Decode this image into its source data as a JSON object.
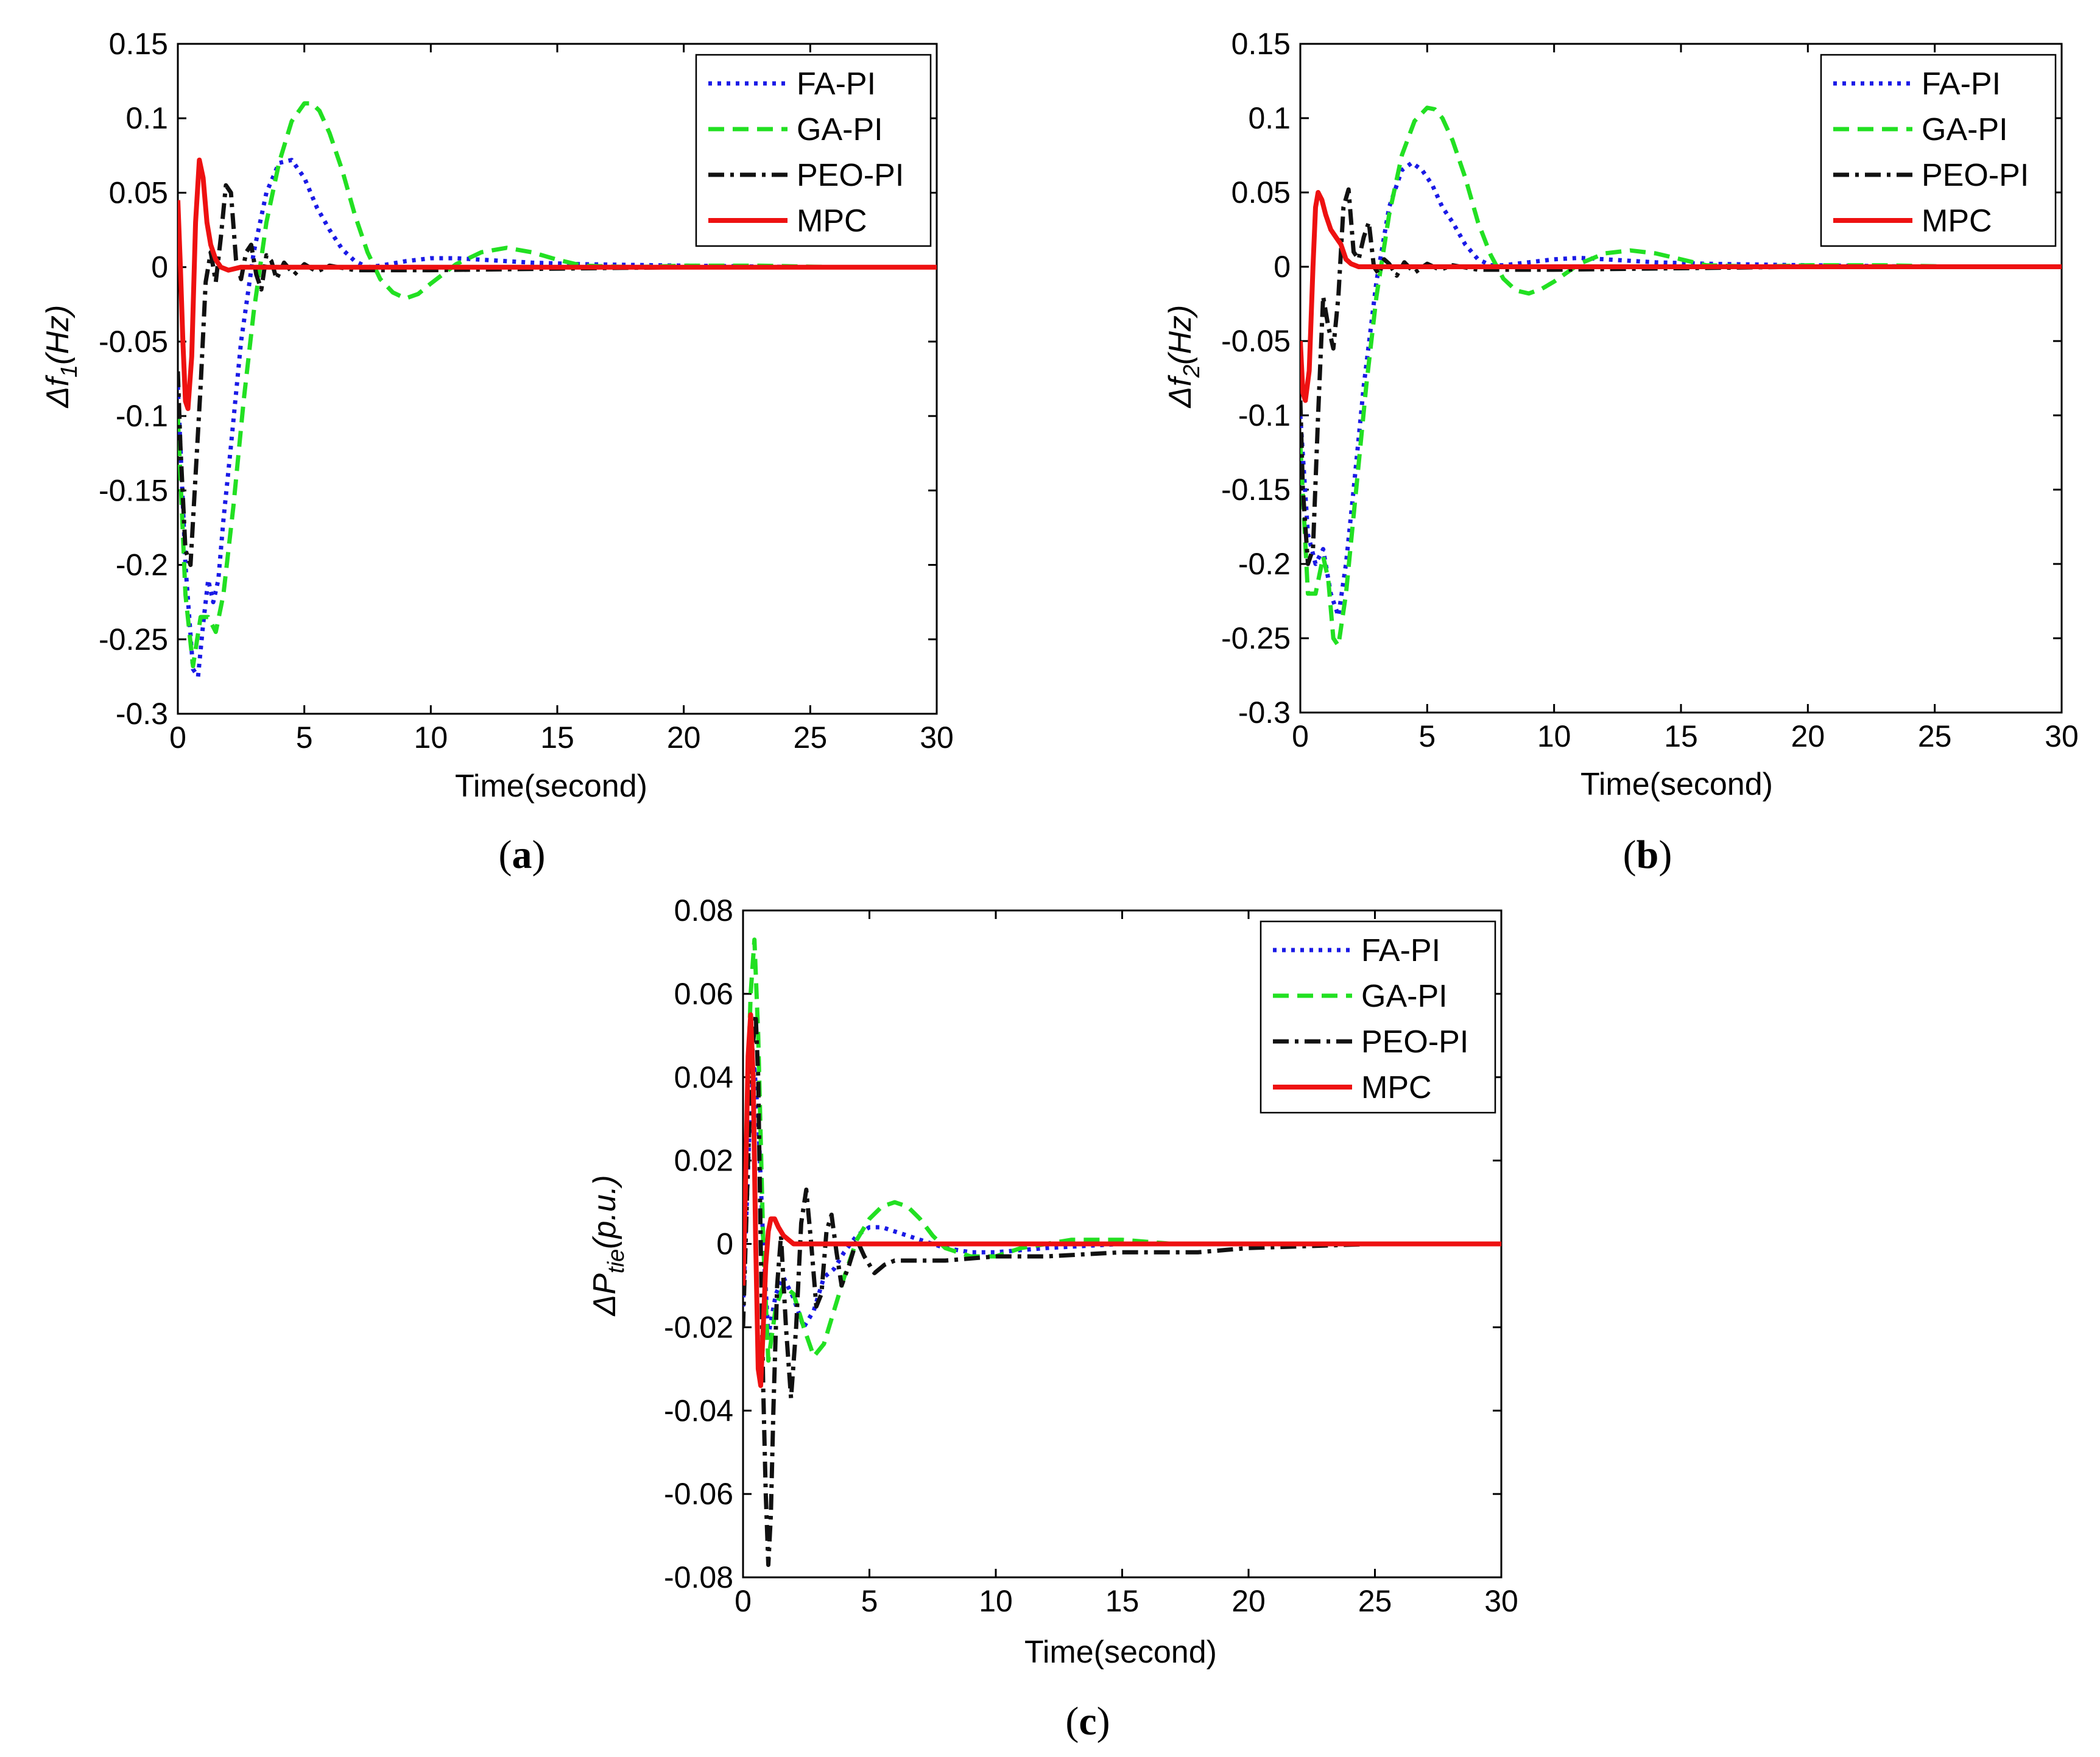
{
  "figure": {
    "series_styles": [
      {
        "name": "FA-PI",
        "color": "#1a1ae6",
        "dash": "6,9",
        "width": 7
      },
      {
        "name": "GA-PI",
        "color": "#22e022",
        "dash": "26,14",
        "width": 7
      },
      {
        "name": "PEO-PI",
        "color": "#111111",
        "dash": "26,10,6,10",
        "width": 7
      },
      {
        "name": "MPC",
        "color": "#ee1111",
        "dash": "",
        "width": 8
      }
    ]
  },
  "chart_data": [
    {
      "panel": "a",
      "caption": {
        "open": "(",
        "letter": "a",
        "close": ")"
      },
      "type": "line",
      "title": "",
      "xlabel": "Time(second)",
      "ylabel": {
        "prefix": "Δf",
        "sub": "1",
        "suffix": "(Hz)"
      },
      "xlim": [
        0,
        30
      ],
      "ylim": [
        -0.3,
        0.15
      ],
      "xticks": [
        0,
        5,
        10,
        15,
        20,
        25,
        30
      ],
      "yticks": [
        -0.3,
        -0.25,
        -0.2,
        -0.15,
        -0.1,
        -0.05,
        0,
        0.05,
        0.1,
        0.15
      ],
      "ytick_labels": [
        "-0.3",
        "-0.25",
        "-0.2",
        "-0.15",
        "-0.1",
        "-0.05",
        "0",
        "0.05",
        "0.1",
        "0.15"
      ],
      "xtick_labels": [
        "0",
        "5",
        "10",
        "15",
        "20",
        "25",
        "30"
      ],
      "legend": [
        "FA-PI",
        "GA-PI",
        "PEO-PI",
        "MPC"
      ],
      "legend_position": "top-right",
      "series": [
        {
          "name": "FA-PI",
          "x": [
            0,
            0.3,
            0.6,
            0.8,
            1.0,
            1.2,
            1.4,
            1.6,
            1.8,
            2.1,
            2.5,
            3.0,
            3.5,
            4.0,
            4.5,
            5.0,
            5.5,
            6.0,
            6.5,
            7.0,
            7.5,
            8.0,
            9.0,
            10.0,
            11.0,
            12.0,
            14.0,
            16.0,
            20.0,
            25.0,
            30.0
          ],
          "y": [
            -0.08,
            -0.2,
            -0.27,
            -0.275,
            -0.24,
            -0.21,
            -0.225,
            -0.21,
            -0.17,
            -0.12,
            -0.05,
            0.01,
            0.05,
            0.07,
            0.072,
            0.06,
            0.04,
            0.025,
            0.012,
            0.004,
            0.0,
            0.001,
            0.004,
            0.006,
            0.006,
            0.005,
            0.003,
            0.002,
            0.001,
            0.0,
            0.0
          ]
        },
        {
          "name": "GA-PI",
          "x": [
            0,
            0.3,
            0.6,
            0.9,
            1.2,
            1.5,
            1.8,
            2.2,
            2.6,
            3.0,
            3.5,
            4.0,
            4.5,
            5.0,
            5.3,
            5.6,
            6.0,
            6.5,
            7.0,
            7.5,
            8.0,
            8.5,
            9.0,
            9.5,
            10.0,
            11.0,
            12.0,
            13.0,
            14.0,
            15.0,
            16.0,
            18.0,
            20.0,
            23.0,
            26.0,
            30.0
          ],
          "y": [
            -0.1,
            -0.22,
            -0.268,
            -0.235,
            -0.235,
            -0.245,
            -0.22,
            -0.16,
            -0.09,
            -0.03,
            0.03,
            0.07,
            0.098,
            0.11,
            0.11,
            0.105,
            0.09,
            0.065,
            0.035,
            0.01,
            -0.008,
            -0.017,
            -0.021,
            -0.018,
            -0.011,
            0.002,
            0.01,
            0.013,
            0.01,
            0.005,
            0.001,
            0.0,
            0.001,
            0.001,
            0.0,
            0.0
          ]
        },
        {
          "name": "PEO-PI",
          "x": [
            0,
            0.1,
            0.3,
            0.5,
            0.7,
            0.9,
            1.1,
            1.3,
            1.5,
            1.7,
            1.9,
            2.1,
            2.3,
            2.5,
            2.7,
            2.9,
            3.1,
            3.3,
            3.5,
            3.7,
            3.9,
            4.2,
            4.6,
            5.0,
            5.5,
            6.0,
            7.0,
            8.0,
            10.0,
            15.0,
            20.0,
            30.0
          ],
          "y": [
            -0.07,
            -0.12,
            -0.19,
            -0.2,
            -0.14,
            -0.08,
            -0.01,
            0.01,
            -0.01,
            0.02,
            0.055,
            0.05,
            0.005,
            -0.008,
            0.01,
            0.015,
            -0.005,
            -0.015,
            0.008,
            0.004,
            -0.008,
            0.003,
            -0.005,
            0.002,
            -0.003,
            0.001,
            -0.002,
            -0.002,
            -0.002,
            -0.001,
            0.0,
            0.0
          ]
        },
        {
          "name": "MPC",
          "x": [
            0,
            0.1,
            0.2,
            0.3,
            0.4,
            0.55,
            0.7,
            0.85,
            1.0,
            1.15,
            1.3,
            1.5,
            1.7,
            2.0,
            2.5,
            3.0,
            5.0,
            10.0,
            20.0,
            30.0
          ],
          "y": [
            0.045,
            0.0,
            -0.05,
            -0.09,
            -0.095,
            -0.06,
            0.03,
            0.072,
            0.06,
            0.03,
            0.015,
            0.005,
            0.0,
            -0.002,
            0.0,
            0.0,
            0.0,
            0.0,
            0.0,
            0.0
          ]
        }
      ]
    },
    {
      "panel": "b",
      "caption": {
        "open": "(",
        "letter": "b",
        "close": ")"
      },
      "type": "line",
      "title": "",
      "xlabel": "Time(second)",
      "ylabel": {
        "prefix": "Δf",
        "sub": "2",
        "suffix": "(Hz)"
      },
      "xlim": [
        0,
        30
      ],
      "ylim": [
        -0.3,
        0.15
      ],
      "xticks": [
        0,
        5,
        10,
        15,
        20,
        25,
        30
      ],
      "yticks": [
        -0.3,
        -0.25,
        -0.2,
        -0.15,
        -0.1,
        -0.05,
        0,
        0.05,
        0.1,
        0.15
      ],
      "ytick_labels": [
        "-0.3",
        "-0.25",
        "-0.2",
        "-0.15",
        "-0.1",
        "-0.05",
        "0",
        "0.05",
        "0.1",
        "0.15"
      ],
      "xtick_labels": [
        "0",
        "5",
        "10",
        "15",
        "20",
        "25",
        "30"
      ],
      "legend": [
        "FA-PI",
        "GA-PI",
        "PEO-PI",
        "MPC"
      ],
      "legend_position": "top-right",
      "series": [
        {
          "name": "FA-PI",
          "x": [
            0,
            0.3,
            0.6,
            0.9,
            1.2,
            1.5,
            1.8,
            2.1,
            2.5,
            3.0,
            3.5,
            4.0,
            4.4,
            4.8,
            5.2,
            5.6,
            6.0,
            6.5,
            7.0,
            7.5,
            8.0,
            9.0,
            10.0,
            11.0,
            12.0,
            14.0,
            16.0,
            20.0,
            25.0,
            30.0
          ],
          "y": [
            -0.1,
            -0.18,
            -0.2,
            -0.19,
            -0.22,
            -0.235,
            -0.2,
            -0.15,
            -0.08,
            -0.01,
            0.04,
            0.065,
            0.07,
            0.065,
            0.055,
            0.04,
            0.03,
            0.015,
            0.005,
            0.001,
            0.001,
            0.003,
            0.005,
            0.006,
            0.005,
            0.003,
            0.002,
            0.001,
            0.0,
            0.0
          ]
        },
        {
          "name": "GA-PI",
          "x": [
            0,
            0.3,
            0.6,
            0.9,
            1.1,
            1.3,
            1.5,
            1.8,
            2.2,
            2.6,
            3.0,
            3.5,
            4.0,
            4.5,
            5.0,
            5.3,
            5.6,
            6.0,
            6.5,
            7.0,
            7.5,
            8.0,
            8.5,
            9.0,
            9.5,
            10.0,
            11.0,
            12.0,
            13.0,
            14.0,
            15.0,
            16.0,
            18.0,
            20.0,
            23.0,
            26.0,
            30.0
          ],
          "y": [
            -0.12,
            -0.22,
            -0.22,
            -0.195,
            -0.21,
            -0.25,
            -0.255,
            -0.22,
            -0.15,
            -0.08,
            -0.02,
            0.035,
            0.075,
            0.098,
            0.107,
            0.106,
            0.1,
            0.085,
            0.06,
            0.03,
            0.008,
            -0.008,
            -0.016,
            -0.018,
            -0.015,
            -0.01,
            0.002,
            0.009,
            0.011,
            0.009,
            0.005,
            0.001,
            0.0,
            0.001,
            0.001,
            0.0,
            0.0
          ]
        },
        {
          "name": "PEO-PI",
          "x": [
            0,
            0.1,
            0.3,
            0.5,
            0.7,
            0.9,
            1.1,
            1.3,
            1.5,
            1.7,
            1.9,
            2.1,
            2.3,
            2.5,
            2.7,
            2.9,
            3.1,
            3.3,
            3.5,
            3.8,
            4.1,
            4.5,
            5.0,
            5.5,
            6.0,
            7.0,
            8.0,
            10.0,
            15.0,
            20.0,
            30.0
          ],
          "y": [
            -0.09,
            -0.15,
            -0.2,
            -0.19,
            -0.1,
            -0.02,
            -0.04,
            -0.055,
            -0.02,
            0.04,
            0.052,
            0.01,
            0.005,
            0.02,
            0.03,
            0.0,
            -0.005,
            0.005,
            0.002,
            -0.006,
            0.003,
            -0.004,
            0.002,
            -0.002,
            0.001,
            -0.002,
            -0.002,
            -0.002,
            -0.001,
            0.0,
            0.0
          ]
        },
        {
          "name": "MPC",
          "x": [
            0,
            0.1,
            0.2,
            0.35,
            0.5,
            0.6,
            0.7,
            0.85,
            1.0,
            1.2,
            1.4,
            1.6,
            1.8,
            2.0,
            2.3,
            2.6,
            3.0,
            5.0,
            10.0,
            20.0,
            30.0
          ],
          "y": [
            -0.05,
            -0.085,
            -0.09,
            -0.07,
            0.0,
            0.04,
            0.05,
            0.045,
            0.035,
            0.025,
            0.02,
            0.015,
            0.005,
            0.002,
            0.0,
            0.0,
            0.0,
            0.0,
            0.0,
            0.0,
            0.0
          ]
        }
      ]
    },
    {
      "panel": "c",
      "caption": {
        "open": "(",
        "letter": "c",
        "close": ")"
      },
      "type": "line",
      "title": "",
      "xlabel": "Time(second)",
      "ylabel": {
        "prefix": "ΔP",
        "sub": "tie",
        "suffix": "(p.u.)"
      },
      "xlim": [
        0,
        30
      ],
      "ylim": [
        -0.08,
        0.08
      ],
      "xticks": [
        0,
        5,
        10,
        15,
        20,
        25,
        30
      ],
      "yticks": [
        -0.08,
        -0.06,
        -0.04,
        -0.02,
        0,
        0.02,
        0.04,
        0.06,
        0.08
      ],
      "ytick_labels": [
        "-0.08",
        "-0.06",
        "-0.04",
        "-0.02",
        "0",
        "0.02",
        "0.04",
        "0.06",
        "0.08"
      ],
      "xtick_labels": [
        "0",
        "5",
        "10",
        "15",
        "20",
        "25",
        "30"
      ],
      "legend": [
        "FA-PI",
        "GA-PI",
        "PEO-PI",
        "MPC"
      ],
      "legend_position": "top-right",
      "series": [
        {
          "name": "FA-PI",
          "x": [
            0,
            0.15,
            0.3,
            0.45,
            0.6,
            0.8,
            1.0,
            1.3,
            1.6,
            2.0,
            2.4,
            2.8,
            3.2,
            3.6,
            4.0,
            4.5,
            5.0,
            5.5,
            6.0,
            7.0,
            8.0,
            9.0,
            10.0,
            12.0,
            15.0,
            20.0,
            25.0,
            30.0
          ],
          "y": [
            -0.015,
            0.01,
            0.035,
            0.042,
            0.03,
            0.0,
            -0.022,
            -0.012,
            -0.008,
            -0.013,
            -0.02,
            -0.016,
            -0.008,
            -0.006,
            -0.002,
            0.002,
            0.004,
            0.004,
            0.003,
            0.001,
            -0.001,
            -0.002,
            -0.002,
            -0.001,
            0.0,
            0.0,
            0.0,
            0.0
          ]
        },
        {
          "name": "GA-PI",
          "x": [
            0,
            0.15,
            0.3,
            0.45,
            0.6,
            0.8,
            1.0,
            1.3,
            1.6,
            2.0,
            2.4,
            2.8,
            3.2,
            3.6,
            4.0,
            4.5,
            5.0,
            5.5,
            6.0,
            6.5,
            7.0,
            7.5,
            8.0,
            9.0,
            10.0,
            11.0,
            12.0,
            13.0,
            14.0,
            15.0,
            17.0,
            20.0,
            25.0,
            30.0
          ],
          "y": [
            -0.01,
            0.03,
            0.06,
            0.073,
            0.05,
            0.0,
            -0.028,
            -0.015,
            -0.01,
            -0.012,
            -0.02,
            -0.027,
            -0.024,
            -0.016,
            -0.008,
            0.001,
            0.006,
            0.009,
            0.01,
            0.009,
            0.006,
            0.002,
            -0.001,
            -0.003,
            -0.003,
            -0.001,
            0.0,
            0.001,
            0.001,
            0.001,
            0.0,
            0.0,
            0.0,
            0.0
          ]
        },
        {
          "name": "PEO-PI",
          "x": [
            0,
            0.1,
            0.2,
            0.35,
            0.5,
            0.6,
            0.7,
            0.8,
            0.9,
            1.0,
            1.1,
            1.2,
            1.35,
            1.5,
            1.7,
            1.9,
            2.1,
            2.3,
            2.5,
            2.7,
            2.9,
            3.1,
            3.3,
            3.5,
            3.7,
            3.9,
            4.2,
            4.5,
            4.8,
            5.2,
            5.6,
            6.0,
            7.0,
            8.0,
            10.0,
            12.0,
            15.0,
            18.0,
            20.0,
            25.0,
            30.0
          ],
          "y": [
            -0.02,
            0.0,
            0.02,
            0.045,
            0.055,
            0.04,
            0.0,
            -0.035,
            -0.06,
            -0.077,
            -0.065,
            -0.04,
            -0.01,
            0.002,
            -0.02,
            -0.037,
            -0.02,
            0.005,
            0.013,
            0.0,
            -0.015,
            -0.012,
            0.003,
            0.007,
            -0.002,
            -0.01,
            -0.005,
            0.001,
            -0.003,
            -0.007,
            -0.005,
            -0.004,
            -0.004,
            -0.004,
            -0.003,
            -0.003,
            -0.002,
            -0.002,
            -0.001,
            0.0,
            0.0
          ]
        },
        {
          "name": "MPC",
          "x": [
            0,
            0.1,
            0.2,
            0.3,
            0.4,
            0.5,
            0.6,
            0.7,
            0.8,
            0.9,
            1.0,
            1.1,
            1.25,
            1.4,
            1.6,
            1.8,
            2.0,
            2.5,
            3.0,
            5.0,
            10.0,
            20.0,
            30.0
          ],
          "y": [
            -0.01,
            0.015,
            0.045,
            0.055,
            0.04,
            0.0,
            -0.03,
            -0.034,
            -0.02,
            -0.005,
            0.003,
            0.006,
            0.006,
            0.004,
            0.002,
            0.001,
            0.0,
            0.0,
            0.0,
            0.0,
            0.0,
            0.0,
            0.0
          ]
        }
      ]
    }
  ]
}
